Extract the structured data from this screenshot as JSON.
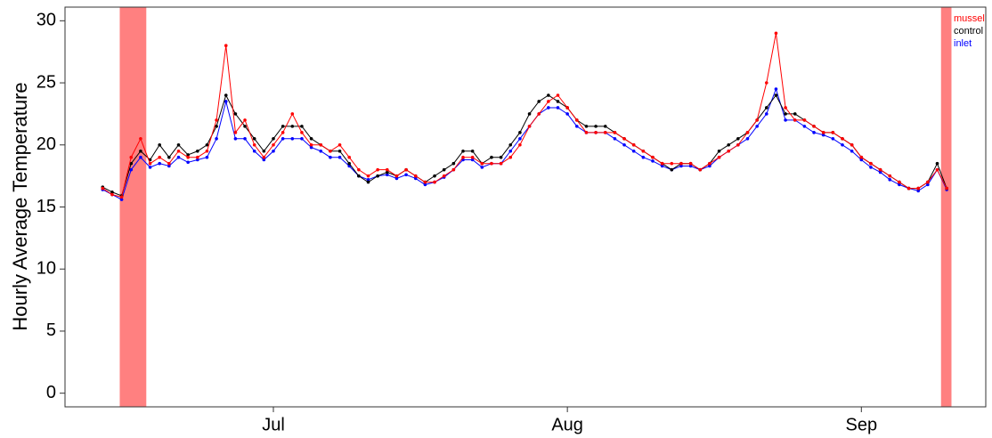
{
  "chart_data": {
    "type": "line",
    "y_label": "Hourly Average Temperature",
    "categories": [
      null,
      null,
      null,
      null,
      null,
      null,
      null,
      null,
      null,
      null,
      null,
      null,
      null,
      null,
      null,
      null,
      null,
      null,
      "Jul",
      null,
      null,
      null,
      null,
      null,
      null,
      null,
      null,
      null,
      null,
      null,
      null,
      null,
      null,
      null,
      null,
      null,
      null,
      null,
      null,
      null,
      null,
      null,
      null,
      null,
      null,
      null,
      null,
      null,
      null,
      "Aug",
      null,
      null,
      null,
      null,
      null,
      null,
      null,
      null,
      null,
      null,
      null,
      null,
      null,
      null,
      null,
      null,
      null,
      null,
      null,
      null,
      null,
      null,
      null,
      null,
      null,
      null,
      null,
      null,
      null,
      null,
      "Sep",
      null,
      null,
      null,
      null,
      null,
      null,
      null,
      null,
      null
    ],
    "ylim": [
      -1.1,
      31.1
    ],
    "yticks": [
      0,
      5,
      10,
      15,
      20,
      25,
      30
    ],
    "legend_position": "top-right",
    "spans": [
      {
        "start": 1.8,
        "end": 4.6
      },
      {
        "start": 88.4,
        "end": 89.5
      }
    ],
    "span_color": "#ff8080",
    "series": [
      {
        "name": "mussel",
        "color": "#ff0000",
        "values": [
          16.5,
          16,
          15.8,
          19,
          20.5,
          18.5,
          19,
          18.5,
          19.5,
          19,
          19,
          19.5,
          22,
          28,
          21,
          22,
          20,
          19,
          20,
          21,
          22.5,
          21,
          20,
          20,
          19.5,
          20,
          19,
          18,
          17.5,
          18,
          18,
          17.5,
          18,
          17.5,
          17,
          17,
          17.5,
          18,
          19,
          19,
          18.5,
          18.5,
          18.5,
          19,
          20,
          21.5,
          22.5,
          23.5,
          24,
          23,
          22,
          21,
          21,
          21,
          21,
          20.5,
          20,
          19.5,
          19,
          18.5,
          18.5,
          18.5,
          18.5,
          18,
          18.5,
          19,
          19.5,
          20,
          21,
          22,
          25,
          29,
          23,
          22,
          22,
          21.5,
          21,
          21,
          20.5,
          20,
          19,
          18.5,
          18,
          17.5,
          17,
          16.5,
          16.5,
          17,
          18,
          16.5
        ]
      },
      {
        "name": "control",
        "color": "#000000",
        "values": [
          16.6,
          16.2,
          15.9,
          18.5,
          19.5,
          18.8,
          20,
          19,
          20,
          19.2,
          19.5,
          20,
          21.5,
          24,
          22.5,
          21.5,
          20.5,
          19.5,
          20.5,
          21.5,
          21.5,
          21.5,
          20.5,
          20,
          19.5,
          19.5,
          18.5,
          17.5,
          17,
          17.5,
          17.8,
          17.5,
          18,
          17.5,
          17,
          17.5,
          18,
          18.5,
          19.5,
          19.5,
          18.5,
          19,
          19,
          20,
          21,
          22.5,
          23.5,
          24,
          23.5,
          23,
          22,
          21.5,
          21.5,
          21.5,
          21,
          20.5,
          20,
          19.5,
          19,
          18.5,
          18,
          18.5,
          18.5,
          18,
          18.5,
          19.5,
          20,
          20.5,
          21,
          22,
          23,
          24,
          22.5,
          22.5,
          22,
          21.5,
          21,
          21,
          20.5,
          20,
          19,
          18.5,
          18,
          17.5,
          17,
          16.5,
          16.5,
          17,
          18.5,
          16.5
        ]
      },
      {
        "name": "inlet",
        "color": "#0000ff",
        "values": [
          16.4,
          16,
          15.6,
          18,
          19,
          18.2,
          18.5,
          18.3,
          19,
          18.6,
          18.8,
          19,
          20.5,
          23.5,
          20.5,
          20.5,
          19.5,
          18.8,
          19.5,
          20.5,
          20.5,
          20.5,
          19.8,
          19.5,
          19,
          19,
          18.3,
          17.5,
          17.2,
          17.5,
          17.6,
          17.3,
          17.6,
          17.3,
          16.8,
          17,
          17.4,
          18,
          18.8,
          18.8,
          18.2,
          18.5,
          18.5,
          19.5,
          20.5,
          21.5,
          22.5,
          23,
          23,
          22.5,
          21.5,
          21,
          21,
          21,
          20.5,
          20,
          19.5,
          19,
          18.7,
          18.3,
          18,
          18.3,
          18.3,
          18,
          18.3,
          19,
          19.5,
          20,
          20.5,
          21.5,
          22.5,
          24.5,
          22,
          22,
          21.5,
          21,
          20.8,
          20.5,
          20,
          19.5,
          18.8,
          18.2,
          17.8,
          17.2,
          16.8,
          16.5,
          16.3,
          16.8,
          18,
          16.4
        ]
      }
    ]
  }
}
